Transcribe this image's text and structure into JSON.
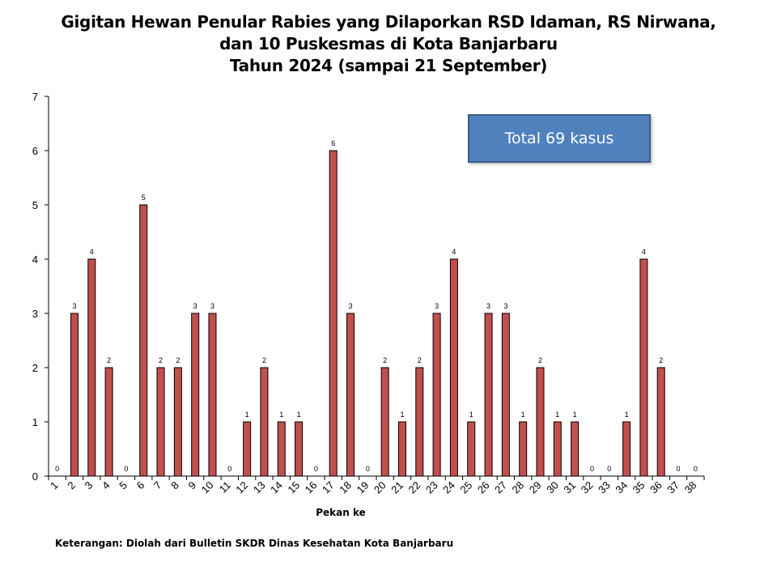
{
  "chart_data": {
    "type": "bar",
    "title_lines": [
      "Gigitan Hewan Penular Rabies yang Dilaporkan RSD Idaman, RS Nirwana,",
      "dan 10 Puskesmas di Kota Banjarbaru",
      "Tahun 2024 (sampai 21 September)"
    ],
    "xlabel": "Pekan ke",
    "ylabel": "",
    "ylim": [
      0,
      7
    ],
    "yticks": [
      "0",
      "1",
      "2",
      "3",
      "4",
      "5",
      "6",
      "7"
    ],
    "categories": [
      "1",
      "2",
      "3",
      "4",
      "5",
      "6",
      "7",
      "8",
      "9",
      "10",
      "11",
      "12",
      "13",
      "14",
      "15",
      "16",
      "17",
      "18",
      "19",
      "20",
      "21",
      "22",
      "23",
      "24",
      "25",
      "26",
      "27",
      "28",
      "29",
      "30",
      "31",
      "32",
      "33",
      "34",
      "35",
      "36",
      "37",
      "38"
    ],
    "values": [
      0,
      3,
      4,
      2,
      0,
      5,
      2,
      2,
      3,
      3,
      0,
      1,
      2,
      1,
      1,
      0,
      6,
      3,
      0,
      2,
      1,
      2,
      3,
      4,
      1,
      3,
      3,
      1,
      2,
      1,
      1,
      0,
      0,
      1,
      4,
      2,
      0,
      0
    ],
    "bar_color": "#c0504d",
    "bar_stroke": "#000000",
    "annotation": "Total  69 kasus",
    "annotation_color": "#4f81bd",
    "grid": false,
    "legend": "none"
  },
  "footnote": "Keterangan: Diolah dari Bulletin SKDR Dinas Kesehatan Kota Banjarbaru"
}
